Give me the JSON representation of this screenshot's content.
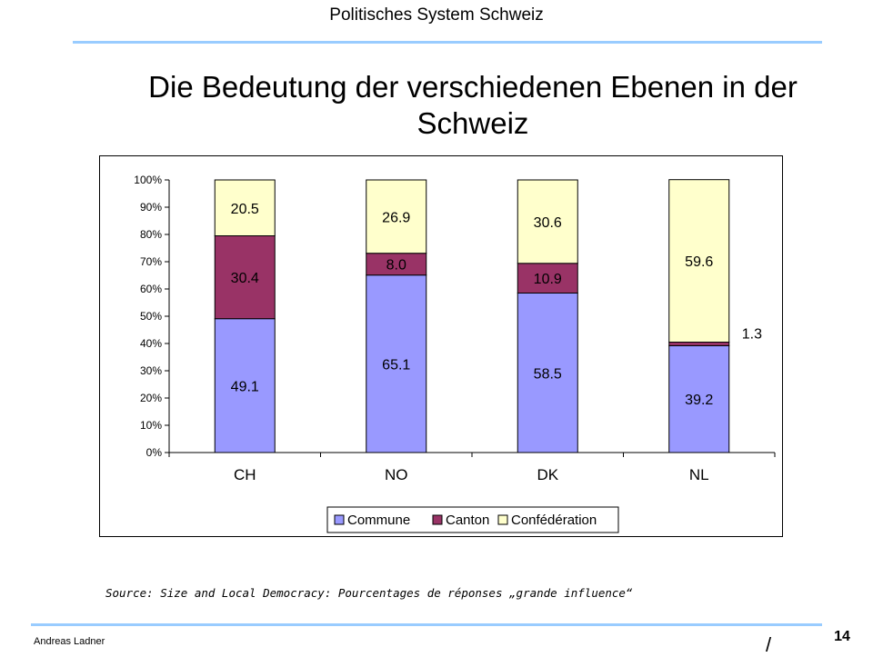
{
  "header": {
    "title": "Politisches System Schweiz"
  },
  "slide": {
    "title": "Die Bedeutung der verschiedenen Ebenen in der Schweiz"
  },
  "colors": {
    "rule": "#99ccff",
    "commune": "#9999ff",
    "canton": "#993366",
    "confederation": "#ffffcc"
  },
  "chart_data": {
    "type": "bar",
    "stacked": true,
    "percent": true,
    "categories": [
      "CH",
      "NO",
      "DK",
      "NL"
    ],
    "series": [
      {
        "name": "Commune",
        "color": "#9999ff",
        "values": [
          49.1,
          65.1,
          58.5,
          39.2
        ],
        "labels": [
          "49.1",
          "65.1",
          "58.5",
          "39.2"
        ]
      },
      {
        "name": "Canton",
        "color": "#993366",
        "values": [
          30.4,
          8.0,
          10.9,
          1.3
        ],
        "labels": [
          "30.4",
          "8.0",
          "10.9",
          "1.3"
        ]
      },
      {
        "name": "Confédération",
        "color": "#ffffcc",
        "values": [
          20.5,
          26.9,
          30.6,
          59.6
        ],
        "labels": [
          "20.5",
          "26.9",
          "30.6",
          "59.6"
        ]
      }
    ],
    "y_ticks": [
      "0%",
      "10%",
      "20%",
      "30%",
      "40%",
      "50%",
      "60%",
      "70%",
      "80%",
      "90%",
      "100%"
    ],
    "ylim": [
      0,
      100
    ],
    "grid": false,
    "legend_position": "bottom"
  },
  "source": {
    "text": "Source: Size and Local Democracy: Pourcentages de réponses „grande influence“"
  },
  "footer": {
    "author": "Andreas Ladner",
    "page": "14",
    "mark": "/"
  }
}
